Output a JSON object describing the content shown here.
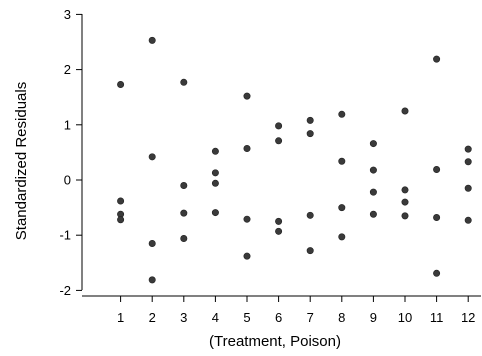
{
  "chart_data": {
    "type": "scatter",
    "title": "",
    "xlabel": "(Treatment, Poison)",
    "ylabel": "Standardized Residuals",
    "xlim": [
      0,
      12.5
    ],
    "ylim": [
      -2.15,
      3
    ],
    "grid": false,
    "legend": "none",
    "x_ticks": [
      1,
      2,
      3,
      4,
      5,
      6,
      7,
      8,
      9,
      10,
      11,
      12
    ],
    "y_ticks": [
      -2,
      -1,
      0,
      1,
      2,
      3
    ],
    "point_color": "#3a3a3a",
    "points": [
      {
        "x": 1,
        "y": 1.73
      },
      {
        "x": 1,
        "y": -0.38
      },
      {
        "x": 1,
        "y": -0.62
      },
      {
        "x": 1,
        "y": -0.72
      },
      {
        "x": 2,
        "y": 2.53
      },
      {
        "x": 2,
        "y": 0.42
      },
      {
        "x": 2,
        "y": -1.15
      },
      {
        "x": 2,
        "y": -1.81
      },
      {
        "x": 3,
        "y": 1.77
      },
      {
        "x": 3,
        "y": -0.1
      },
      {
        "x": 3,
        "y": -0.6
      },
      {
        "x": 3,
        "y": -1.06
      },
      {
        "x": 4,
        "y": 0.52
      },
      {
        "x": 4,
        "y": 0.13
      },
      {
        "x": 4,
        "y": -0.06
      },
      {
        "x": 4,
        "y": -0.59
      },
      {
        "x": 5,
        "y": 1.52
      },
      {
        "x": 5,
        "y": 0.57
      },
      {
        "x": 5,
        "y": -0.71
      },
      {
        "x": 5,
        "y": -1.38
      },
      {
        "x": 6,
        "y": 0.98
      },
      {
        "x": 6,
        "y": 0.71
      },
      {
        "x": 6,
        "y": -0.75
      },
      {
        "x": 6,
        "y": -0.93
      },
      {
        "x": 7,
        "y": 1.08
      },
      {
        "x": 7,
        "y": 0.84
      },
      {
        "x": 7,
        "y": -0.64
      },
      {
        "x": 7,
        "y": -1.28
      },
      {
        "x": 8,
        "y": 1.19
      },
      {
        "x": 8,
        "y": 0.34
      },
      {
        "x": 8,
        "y": -0.5
      },
      {
        "x": 8,
        "y": -1.03
      },
      {
        "x": 9,
        "y": 0.66
      },
      {
        "x": 9,
        "y": 0.18
      },
      {
        "x": 9,
        "y": -0.22
      },
      {
        "x": 9,
        "y": -0.62
      },
      {
        "x": 10,
        "y": 1.25
      },
      {
        "x": 10,
        "y": -0.18
      },
      {
        "x": 10,
        "y": -0.4
      },
      {
        "x": 10,
        "y": -0.65
      },
      {
        "x": 11,
        "y": 2.19
      },
      {
        "x": 11,
        "y": 0.19
      },
      {
        "x": 11,
        "y": -0.68
      },
      {
        "x": 11,
        "y": -1.69
      },
      {
        "x": 12,
        "y": 0.56
      },
      {
        "x": 12,
        "y": 0.33
      },
      {
        "x": 12,
        "y": -0.15
      },
      {
        "x": 12,
        "y": -0.73
      }
    ]
  }
}
